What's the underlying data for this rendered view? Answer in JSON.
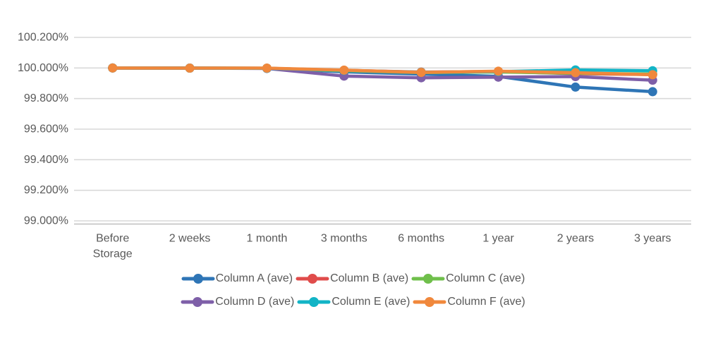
{
  "chart_data": {
    "type": "line",
    "title": "",
    "xlabel": "",
    "ylabel": "",
    "grid": true,
    "legend_position": "bottom",
    "legend_rows": [
      3,
      3
    ],
    "axis_text_color": "#595959",
    "gridline_color": "#D9D9D9",
    "axis_line_color": "#BFBFBF",
    "ylim": [
      99.0,
      100.2
    ],
    "y_ticks": [
      {
        "label": "100.200%",
        "value": 100.2
      },
      {
        "label": "100.000%",
        "value": 100.0
      },
      {
        "label": "99.800%",
        "value": 99.8
      },
      {
        "label": "99.600%",
        "value": 99.6
      },
      {
        "label": "99.400%",
        "value": 99.4
      },
      {
        "label": "99.200%",
        "value": 99.2
      },
      {
        "label": "99.000%",
        "value": 99.0
      }
    ],
    "categories": [
      "Before\nStorage",
      "2 weeks",
      "1 month",
      "3 months",
      "6 months",
      "1 year",
      "2 years",
      "3 years"
    ],
    "series": [
      {
        "name": "Column A (ave)",
        "color": "#2E75B6",
        "values": [
          100.0,
          99.999,
          99.998,
          99.975,
          99.96,
          99.945,
          99.875,
          99.845
        ]
      },
      {
        "name": "Column B (ave)",
        "color": "#E04C4B",
        "values": [
          100.0,
          99.999,
          99.998,
          99.985,
          99.973,
          99.977,
          99.963,
          99.957
        ]
      },
      {
        "name": "Column C (ave)",
        "color": "#6FBF4B",
        "values": [
          100.0,
          99.999,
          99.998,
          99.982,
          99.97,
          99.974,
          99.966,
          99.96
        ]
      },
      {
        "name": "Column D (ave)",
        "color": "#7E5FA8",
        "values": [
          100.0,
          99.999,
          99.997,
          99.947,
          99.936,
          99.94,
          99.944,
          99.92
        ]
      },
      {
        "name": "Column E (ave)",
        "color": "#12B4C6",
        "values": [
          100.0,
          99.999,
          99.998,
          99.984,
          99.972,
          99.976,
          99.987,
          99.982
        ]
      },
      {
        "name": "Column F (ave)",
        "color": "#F0883C",
        "values": [
          100.0,
          99.999,
          99.999,
          99.986,
          99.971,
          99.979,
          99.969,
          99.956
        ]
      }
    ]
  }
}
